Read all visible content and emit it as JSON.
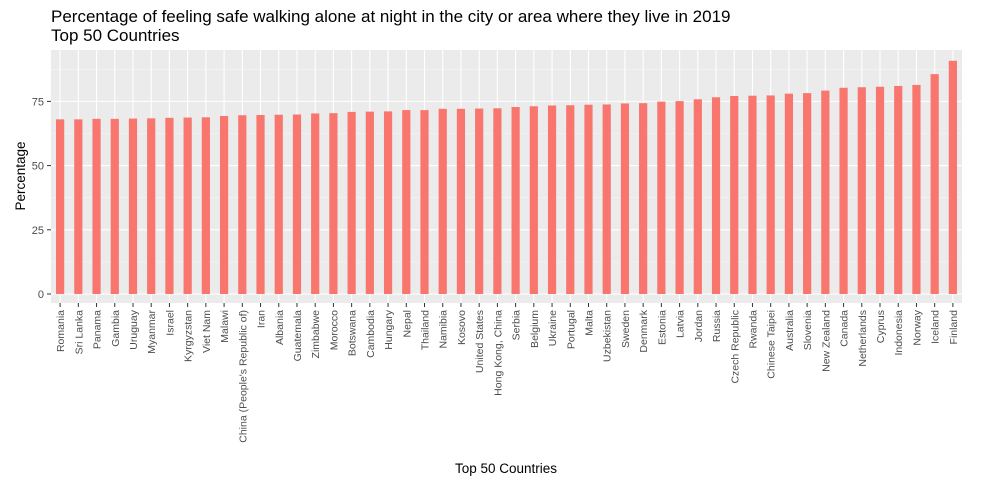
{
  "colors": {
    "bar": "#f8766d",
    "panel": "#ebebeb",
    "grid_major": "#ffffff",
    "grid_minor": "#f5f5f5",
    "text": "#000000",
    "tick_text": "#4d4d4d"
  },
  "chart_data": {
    "type": "bar",
    "title": "Percentage of feeling safe walking alone at night in the city or area where they live in 2019",
    "subtitle": "Top 50 Countries",
    "xlabel": "Top 50 Countries",
    "ylabel": "Percentage",
    "ylim": [
      -3.5,
      95
    ],
    "yticks": [
      0,
      25,
      50,
      75
    ],
    "grid": true,
    "categories": [
      "Romania",
      "Sri Lanka",
      "Panama",
      "Gambia",
      "Uruguay",
      "Myanmar",
      "Israel",
      "Kyrgyzstan",
      "Viet Nam",
      "Malawi",
      "China (People's Republic of)",
      "Iran",
      "Albania",
      "Guatemala",
      "Zimbabwe",
      "Morocco",
      "Botswana",
      "Cambodia",
      "Hungary",
      "Nepal",
      "Thailand",
      "Namibia",
      "Kosovo",
      "United States",
      "Hong Kong, China",
      "Serbia",
      "Belgium",
      "Ukraine",
      "Portugal",
      "Malta",
      "Uzbekistan",
      "Sweden",
      "Denmark",
      "Estonia",
      "Latvia",
      "Jordan",
      "Russia",
      "Czech Republic",
      "Rwanda",
      "Chinese Taipei",
      "Australia",
      "Slovenia",
      "New Zealand",
      "Canada",
      "Netherlands",
      "Cyprus",
      "Indonesia",
      "Norway",
      "Iceland",
      "Finland"
    ],
    "values": [
      68.0,
      68.0,
      68.2,
      68.2,
      68.3,
      68.4,
      68.6,
      68.7,
      68.8,
      69.3,
      69.6,
      69.7,
      69.8,
      69.9,
      70.3,
      70.4,
      70.9,
      71.0,
      71.1,
      71.6,
      71.6,
      72.1,
      72.1,
      72.2,
      72.3,
      72.8,
      73.1,
      73.4,
      73.5,
      73.7,
      73.8,
      74.2,
      74.3,
      74.9,
      75.1,
      75.8,
      76.6,
      77.1,
      77.2,
      77.3,
      78.0,
      78.2,
      79.2,
      80.3,
      80.5,
      80.7,
      81.0,
      81.4,
      85.6,
      90.8
    ]
  }
}
